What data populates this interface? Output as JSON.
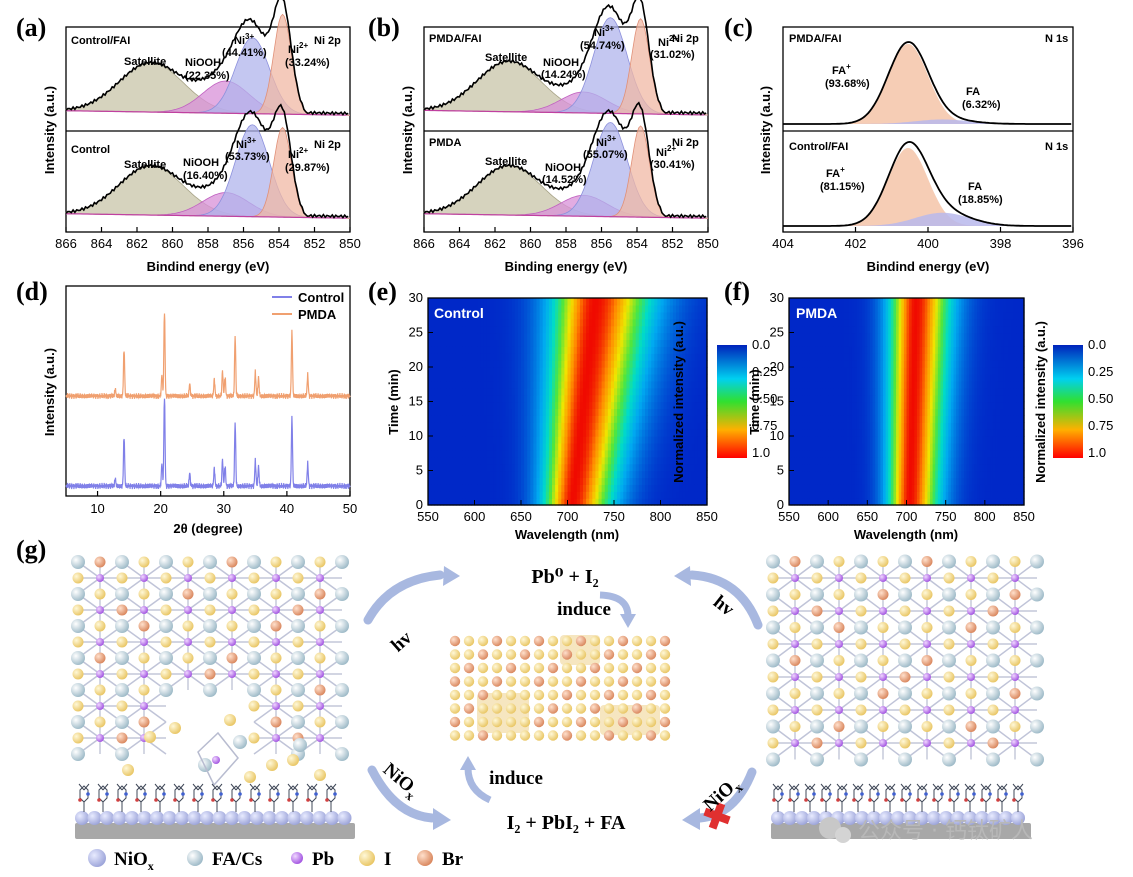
{
  "panel_labels": {
    "a": "(a)",
    "b": "(b)",
    "c": "(c)",
    "d": "(d)",
    "e": "(e)",
    "f": "(f)",
    "g": "(g)"
  },
  "xps_ni": {
    "xlabel_a": "Bindind energy (eV)",
    "xlabel_b": "Binding energy (eV)",
    "ylabel": "Intensity (a.u.)",
    "ticks": [
      "866",
      "864",
      "862",
      "860",
      "858",
      "856",
      "854",
      "852",
      "850"
    ],
    "core_level": "Ni 2p",
    "satellite": "Satellite",
    "nioh": "NiOOH",
    "ni3": "Ni",
    "ni3_sup": "3+",
    "ni2": "Ni",
    "ni2_sup": "2+",
    "a_top": {
      "sample": "Control/FAI",
      "nioh_pct": "(22.35%)",
      "ni3_pct": "(44.41%)",
      "ni2_pct": "(33.24%)"
    },
    "a_bot": {
      "sample": "Control",
      "nioh_pct": "(16.40%)",
      "ni3_pct": "(53.73%)",
      "ni2_pct": "(29.87%)"
    },
    "b_top": {
      "sample": "PMDA/FAI",
      "nioh_pct": "(14.24%)",
      "ni3_pct": "(54.74%)",
      "ni2_pct": "(31.02%)"
    },
    "b_bot": {
      "sample": "PMDA",
      "nioh_pct": "(14.52%)",
      "ni3_pct": "(55.07%)",
      "ni2_pct": "(30.41%)"
    }
  },
  "xps_n": {
    "xlabel": "Bindind energy (eV)",
    "ylabel": "Intensity (a.u.)",
    "ticks": [
      "404",
      "402",
      "400",
      "398",
      "396"
    ],
    "core_level": "N 1s",
    "fa_plus": "FA",
    "fa_plus_sup": "+",
    "fa": "FA",
    "top": {
      "sample": "PMDA/FAI",
      "fa_plus_pct": "(93.68%)",
      "fa_pct": "(6.32%)"
    },
    "bot": {
      "sample": "Control/FAI",
      "fa_plus_pct": "(81.15%)",
      "fa_pct": "(18.85%)"
    }
  },
  "xrd": {
    "xlabel": "2θ (degree)",
    "ylabel": "Intensity (a.u.)",
    "ticks": [
      "10",
      "20",
      "30",
      "40",
      "50"
    ],
    "legend": [
      "Control",
      "PMDA"
    ],
    "colors": {
      "control": "#8080e8",
      "pmda": "#f0a070"
    }
  },
  "pl_maps": {
    "xlabel": "Wavelength (nm)",
    "ylabel": "Time (min)",
    "xticks": [
      "550",
      "600",
      "650",
      "700",
      "750",
      "800",
      "850"
    ],
    "yticks": [
      "0",
      "5",
      "10",
      "15",
      "20",
      "25",
      "30"
    ],
    "cbar_label": "Normalized intensity (a.u.)",
    "cbar_ticks": [
      "0.0",
      "0.25",
      "0.50",
      "0.75",
      "1.0"
    ],
    "e_title": "Control",
    "f_title": "PMDA"
  },
  "scheme": {
    "hv": "hv",
    "nio": "NiO",
    "nio_sub": "x",
    "top_eq": "Pb⁰  +  I₂",
    "induce": "induce",
    "bottom_eq": "I₂  +  PbI₂  +  FA",
    "legend": [
      "NiO",
      "FA/Cs",
      "Pb",
      "I",
      "Br"
    ],
    "legend_nio_sub": "x"
  },
  "watermark": "公众号 · 钙钛矿人",
  "chart_data": [
    {
      "type": "line",
      "title": "(a) Ni 2p",
      "xlabel": "Bindind energy (eV)",
      "ylabel": "Intensity (a.u.)",
      "xlim": [
        866,
        850
      ],
      "series": [
        {
          "name": "Control/FAI",
          "peaks": {
            "Satellite": 861,
            "NiOOH": 857,
            "Ni3+": 855.5,
            "Ni2+": 853.8
          },
          "fractions": {
            "NiOOH": 22.35,
            "Ni3+": 44.41,
            "Ni2+": 33.24
          }
        },
        {
          "name": "Control",
          "peaks": {
            "Satellite": 861,
            "NiOOH": 857,
            "Ni3+": 855.5,
            "Ni2+": 853.8
          },
          "fractions": {
            "NiOOH": 16.4,
            "Ni3+": 53.73,
            "Ni2+": 29.87
          }
        }
      ]
    },
    {
      "type": "line",
      "title": "(b) Ni 2p",
      "xlabel": "Binding energy (eV)",
      "ylabel": "Intensity (a.u.)",
      "xlim": [
        866,
        850
      ],
      "series": [
        {
          "name": "PMDA/FAI",
          "fractions": {
            "NiOOH": 14.24,
            "Ni3+": 54.74,
            "Ni2+": 31.02
          }
        },
        {
          "name": "PMDA",
          "fractions": {
            "NiOOH": 14.52,
            "Ni3+": 55.07,
            "Ni2+": 30.41
          }
        }
      ]
    },
    {
      "type": "line",
      "title": "(c) N 1s",
      "xlabel": "Bindind energy (eV)",
      "ylabel": "Intensity (a.u.)",
      "xlim": [
        404,
        396
      ],
      "series": [
        {
          "name": "PMDA/FAI",
          "fractions": {
            "FA+": 93.68,
            "FA": 6.32
          }
        },
        {
          "name": "Control/FAI",
          "fractions": {
            "FA+": 81.15,
            "FA": 18.85
          }
        }
      ]
    },
    {
      "type": "line",
      "title": "(d)",
      "xlabel": "2θ (degree)",
      "ylabel": "Intensity (a.u.)",
      "xlim": [
        5,
        50
      ],
      "series": [
        {
          "name": "Control",
          "peaks": [
            14.2,
            20.2,
            20.6,
            24.6,
            28.5,
            29.8,
            30.2,
            31.8,
            35,
            35.5,
            40.8,
            43.3
          ]
        },
        {
          "name": "PMDA",
          "peaks": [
            14.2,
            20.2,
            20.6,
            24.6,
            28.5,
            29.8,
            30.2,
            31.8,
            35,
            35.5,
            40.8,
            43.3
          ]
        }
      ]
    },
    {
      "type": "heatmap",
      "title": "Control",
      "xlabel": "Wavelength (nm)",
      "ylabel": "Time (min)",
      "xlim": [
        550,
        850
      ],
      "ylim": [
        0,
        30
      ],
      "peak_center": {
        "t0": 700,
        "t30": 730
      },
      "colorbar": [
        0,
        1
      ]
    },
    {
      "type": "heatmap",
      "title": "PMDA",
      "xlabel": "Wavelength (nm)",
      "ylabel": "Time (min)",
      "xlim": [
        550,
        850
      ],
      "ylim": [
        0,
        30
      ],
      "peak_center": {
        "t0": 705,
        "t30": 710
      },
      "colorbar": [
        0,
        1
      ]
    }
  ]
}
